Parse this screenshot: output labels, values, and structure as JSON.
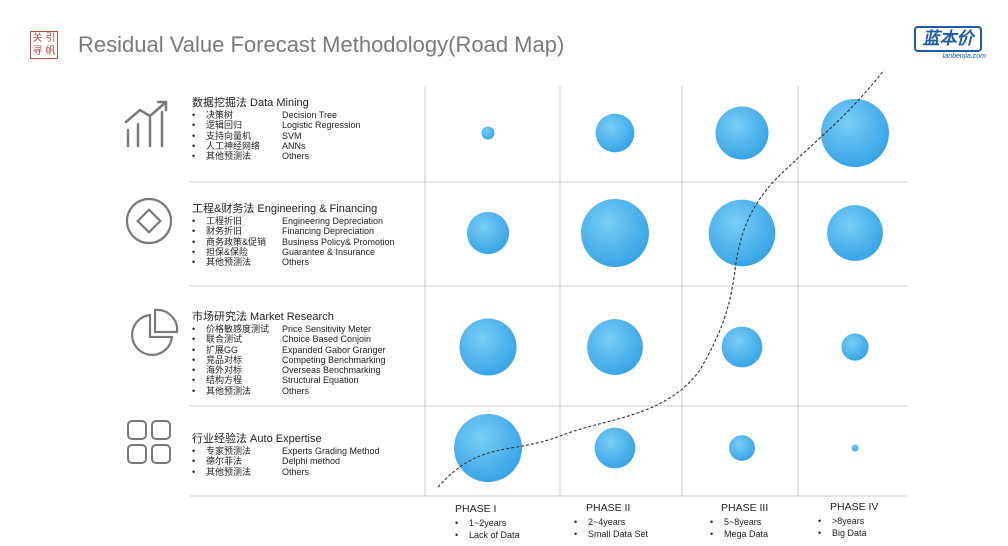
{
  "header": {
    "title": "Residual Value Forecast Methodology(Road Map)",
    "seal_chars": [
      "关",
      "引",
      "寻",
      "帆"
    ],
    "brand_name": "蓝本价",
    "brand_url": "lanbenjia.com"
  },
  "methods": [
    {
      "heading": "数据挖掘法 Data Mining",
      "icon": "bar-trend-chart-icon",
      "items": [
        {
          "cn": "决策树",
          "en": "Decision Tree"
        },
        {
          "cn": "逻辑回归",
          "en": "Logistic Regression"
        },
        {
          "cn": "支持向量机",
          "en": "SVM"
        },
        {
          "cn": "人工神经网络",
          "en": "ANNs"
        },
        {
          "cn": "其他预测法",
          "en": "Others"
        }
      ]
    },
    {
      "heading": "工程&财务法 Engineering & Financing",
      "icon": "diamond-circle-icon",
      "items": [
        {
          "cn": "工程折旧",
          "en": "Engineering Depreciation"
        },
        {
          "cn": "财务折旧",
          "en": "Financing Depreciation"
        },
        {
          "cn": "商务政策&促销",
          "en": "Business Policy& Promotion"
        },
        {
          "cn": "担保&保险",
          "en": "Guarantee & Insurance"
        },
        {
          "cn": "其他预测法",
          "en": "Others"
        }
      ]
    },
    {
      "heading": "市场研究法 Market Research",
      "icon": "pie-chart-icon",
      "items": [
        {
          "cn": "价格敏感度测试",
          "en": "Price Sensitivity Meter"
        },
        {
          "cn": "联合测试",
          "en": "Choice Based Conjoin"
        },
        {
          "cn": "扩展GG",
          "en": "Expanded Gabor Granger"
        },
        {
          "cn": "竞品对标",
          "en": "Competing Benchmarking"
        },
        {
          "cn": "海外对标",
          "en": "Overseas Benchmarking"
        },
        {
          "cn": "结构方程",
          "en": "Structural Equation"
        },
        {
          "cn": "其他预测法",
          "en": "Others"
        }
      ]
    },
    {
      "heading": "行业经验法 Auto Expertise",
      "icon": "grid-squares-icon",
      "items": [
        {
          "cn": "专家预测法",
          "en": "Experts Grading Method"
        },
        {
          "cn": "德尔菲法",
          "en": "Delphi method"
        },
        {
          "cn": "其他预测法",
          "en": "Others"
        }
      ]
    }
  ],
  "phases": [
    {
      "label": "PHASE I",
      "items": [
        "1~2years",
        "Lack of Data"
      ]
    },
    {
      "label": "PHASE II",
      "items": [
        "2~4years",
        "Small Data Set"
      ]
    },
    {
      "label": "PHASE III",
      "items": [
        "5~8years",
        "Mega Data"
      ]
    },
    {
      "label": "PHASE IV",
      "items": [
        ">8years",
        "Big Data"
      ]
    }
  ],
  "bubble_weights": [
    [
      0.19,
      0.57,
      0.78,
      1.0
    ],
    [
      0.62,
      1.0,
      0.98,
      0.82
    ],
    [
      0.84,
      0.82,
      0.6,
      0.4
    ],
    [
      1.0,
      0.6,
      0.38,
      0.1
    ]
  ],
  "colors": {
    "bubble_light": "#6ec7f4",
    "bubble_dark": "#2a9ae0",
    "grid": "#cccccc",
    "icon": "#7a7a7a"
  }
}
